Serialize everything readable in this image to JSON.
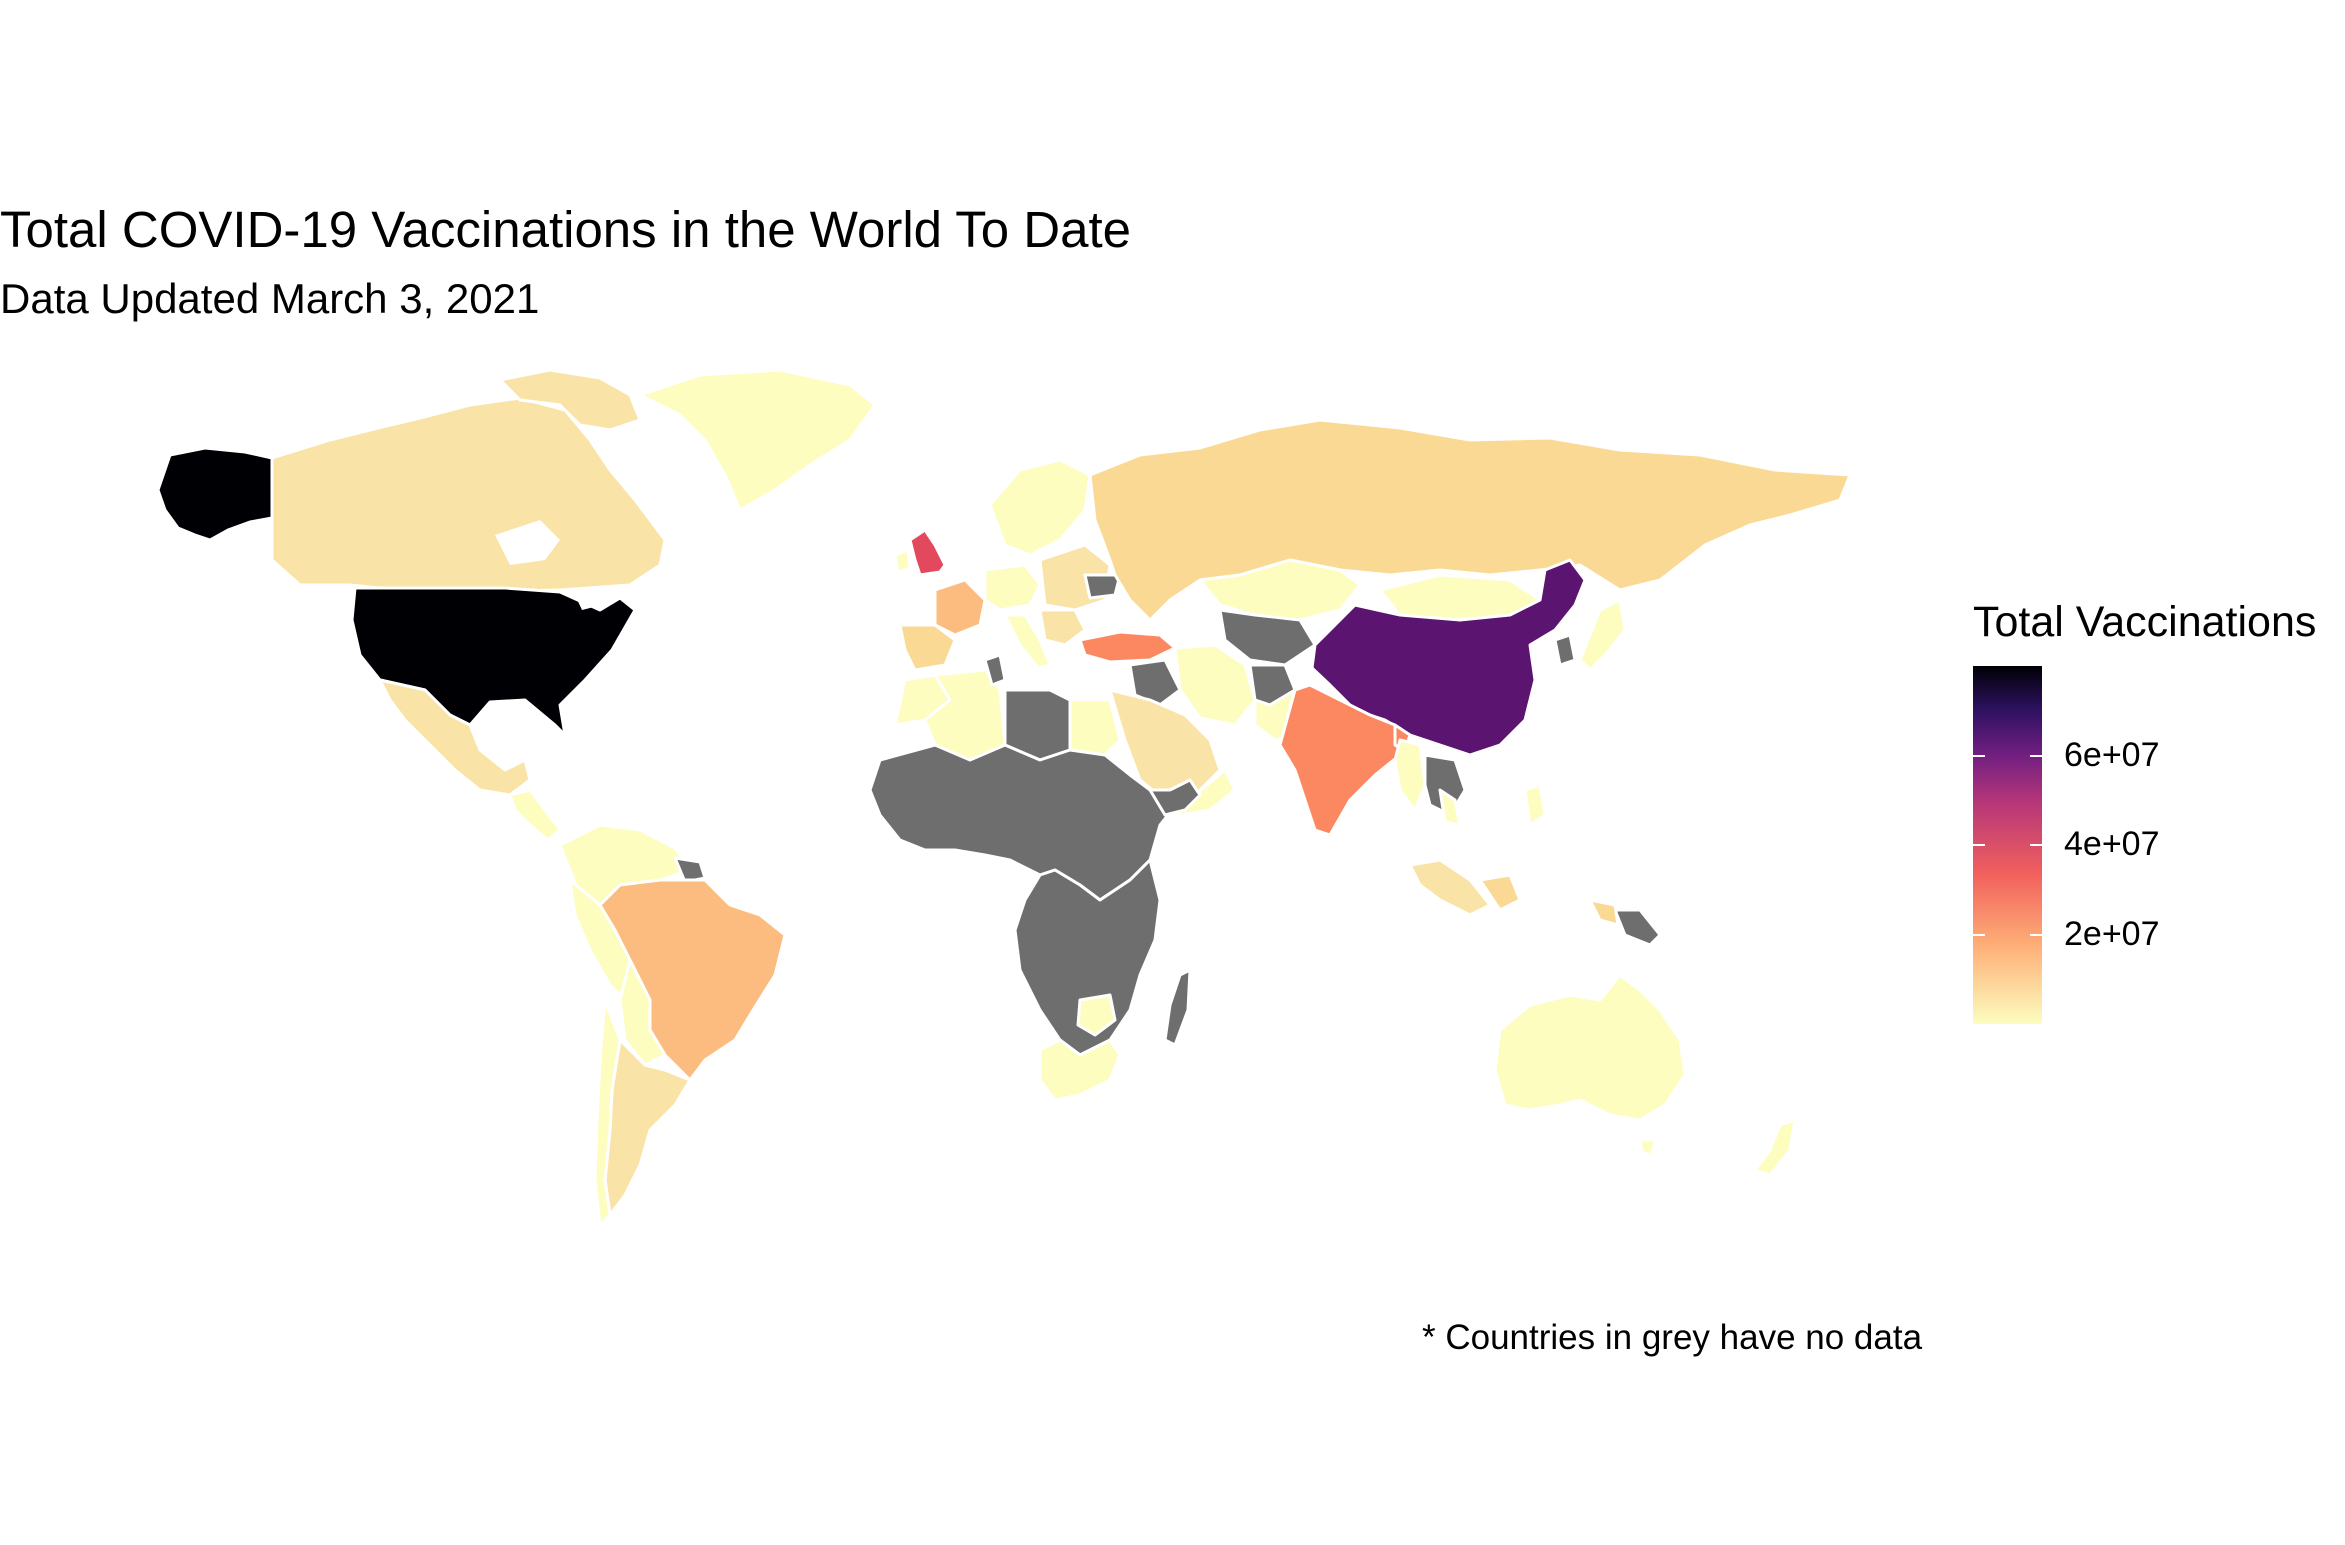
{
  "title": "Total COVID-19 Vaccinations in the World To Date",
  "subtitle": "Data Updated March 3, 2021",
  "legend": {
    "title": "Total Vaccinations",
    "ticks": [
      {
        "label": "6e+07",
        "value": 60000000
      },
      {
        "label": "4e+07",
        "value": 40000000
      },
      {
        "label": "2e+07",
        "value": 20000000
      }
    ],
    "scale_min": 0,
    "scale_max": 80000000,
    "palette": "magma",
    "no_data_color": "#6e6e6e"
  },
  "note": "* Countries in grey have no data",
  "colors": {
    "very_high": "#000004",
    "high": "#5B1470",
    "mid_high": "#E3495C",
    "mid": "#FB8861",
    "mid_low": "#FCBC80",
    "low": "#FAD994",
    "very_low": "#FCFDBF",
    "no_data": "#6e6e6e",
    "border": "#ffffff"
  }
}
